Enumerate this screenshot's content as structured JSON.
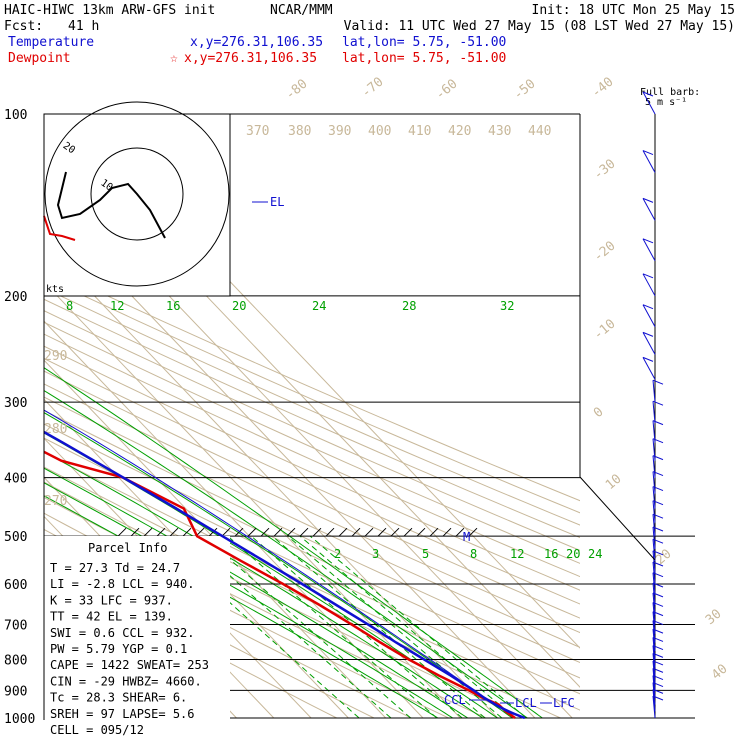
{
  "header": {
    "model": "HAIC-HIWC 13km ARW-GFS init",
    "center": "NCAR/MMM",
    "init": "Init: 18 UTC Mon 25 May 15",
    "fcst_label": "Fcst:",
    "fcst_value": "41 h",
    "valid": "Valid: 11 UTC Wed 27 May 15 (08 LST Wed 27 May 15)",
    "temperature_label": "Temperature",
    "dewpoint_label": "Dewpoint",
    "xy_temp": "x,y=276.31,106.35",
    "xy_dew": "x,y=276.31,106.35",
    "latlon_temp": "lat,lon=  5.75, -51.00",
    "latlon_dew": "lat,lon=  5.75, -51.00",
    "barb_title": "Full barb:",
    "barb_unit": "5 m s⁻¹"
  },
  "colors": {
    "temperature": "#1010d0",
    "dewpoint": "#e00000",
    "isotherm": "#c8b89a",
    "mixing_ratio": "#00a000",
    "isobar": "#000000"
  },
  "hodograph": {
    "units_label": "kts",
    "ring_labels": [
      "10",
      "20"
    ]
  },
  "parcel_info": {
    "title": "Parcel Info",
    "rows": [
      "T    =   27.3  Td =  24.7",
      "LI   =   -2.8  LCL =  940.",
      "K    =     33  LFC =  937.",
      "TT   =     42  EL  =  139.",
      "SWI  =    0.6  CCL =  932.",
      "PW   =   5.79  YGP =   0.1",
      "CAPE =   1422  SWEAT=  253",
      "CIN  =    -29  HWBZ= 4660.",
      "Tc   =   28.3  SHEAR=   6.",
      "SREH =     97  LAPSE=  5.6",
      "CELL = 095/12"
    ]
  },
  "level_labels": {
    "el": "EL",
    "ccl": "CCL",
    "lcl": "LCL",
    "lfc": "LFC",
    "m": "M"
  },
  "chart_data": {
    "type": "line",
    "title": "",
    "y_axis": "pressure (hPa), log scale",
    "pressure_ticks": [
      100,
      200,
      300,
      400,
      500,
      600,
      700,
      800,
      900,
      1000
    ],
    "isotherm_labels": [
      "-80",
      "-70",
      "-60",
      "-50",
      "-40",
      "-30",
      "-20",
      "-10",
      "0",
      "10",
      "20",
      "30",
      "40"
    ],
    "theta_labels": [
      "370",
      "380",
      "390",
      "400",
      "410",
      "420",
      "430",
      "440",
      "290",
      "280",
      "270"
    ],
    "mixing_ratio_upper_labels": [
      "8",
      "12",
      "16",
      "20",
      "24",
      "28",
      "32"
    ],
    "mixing_ratio_lower_labels": [
      "2",
      "3",
      "5",
      "8",
      "12",
      "16",
      "20",
      "24"
    ],
    "series": [
      {
        "name": "Temperature",
        "pressure": [
          1000,
          975,
          950,
          925,
          900,
          850,
          800,
          750,
          700,
          650,
          600,
          550,
          500,
          450,
          400,
          350,
          300,
          250,
          200,
          175,
          150,
          139,
          125,
          110,
          100
        ],
        "temperature": [
          27.3,
          24.5,
          22.8,
          21.5,
          20.7,
          18.3,
          15.3,
          12.1,
          9.2,
          5.7,
          1.9,
          -2.4,
          -7.2,
          -12.5,
          -18.8,
          -26.1,
          -34.9,
          -45.3,
          -57.0,
          -63.5,
          -70.9,
          -73.5,
          -75.1,
          -73.4,
          -70.6
        ]
      },
      {
        "name": "Dewpoint",
        "pressure": [
          1000,
          975,
          950,
          925,
          900,
          850,
          800,
          750,
          700,
          650,
          600,
          550,
          500,
          450,
          400,
          375,
          350,
          300,
          275,
          250,
          225,
          200,
          190,
          175,
          160,
          150,
          140,
          125,
          110,
          100
        ],
        "temperature": [
          24.7,
          23.9,
          23.7,
          21.1,
          19.4,
          15.1,
          11.2,
          7.9,
          4.8,
          1.2,
          -3.2,
          -8.5,
          -14.0,
          -10.5,
          -18.9,
          -31.1,
          -36.0,
          -38.6,
          -45.5,
          -52.1,
          -58.5,
          -61.0,
          -60.5,
          -67.3,
          -76.3,
          -82.5,
          -82.8,
          -78.9,
          -72.8,
          -69.1
        ]
      }
    ],
    "wind_barbs_present": true
  }
}
